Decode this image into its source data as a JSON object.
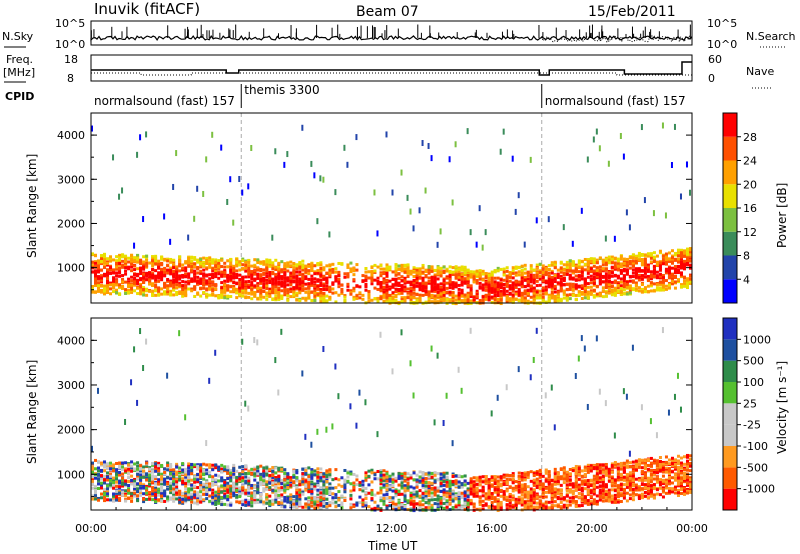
{
  "header": {
    "station": "Inuvik (fitACF)",
    "beam": "Beam 07",
    "date": "15/Feb/2011"
  },
  "top_panels": {
    "nsky_label": "N.Sky",
    "nsearch_label": "N.Search",
    "nsky_ticks": [
      "10^5",
      "10^0"
    ],
    "nsearch_ticks": [
      "10^5",
      "10^0"
    ],
    "freq_label": "Freq.",
    "freq_unit": "[MHz]",
    "freq_ticks": [
      "18",
      "8"
    ],
    "nave_label": "Nave",
    "nave_ticks": [
      "60",
      "0"
    ],
    "cpid_label": "CPID",
    "cpid_segments": [
      {
        "label": "normalsound (fast) 157",
        "start_hour": 0,
        "end_hour": 6
      },
      {
        "label": "themis 3300",
        "start_hour": 6,
        "end_hour": 18
      },
      {
        "label": "normalsound (fast) 157",
        "start_hour": 18,
        "end_hour": 24
      }
    ]
  },
  "colors": {
    "power_scale": [
      "#0000ff",
      "#2244aa",
      "#3a8c5a",
      "#7cc040",
      "#e8e000",
      "#ffa000",
      "#ff5000",
      "#ff0000"
    ],
    "velocity_scale": [
      "#ff0000",
      "#ff5a00",
      "#ff9a20",
      "#c8c8c8",
      "#c8c8c8",
      "#55c030",
      "#2e8c4a",
      "#1e50a0",
      "#2030c0"
    ]
  },
  "chart_data": [
    {
      "type": "heatmap",
      "name": "power",
      "ylabel": "Slant Range [km]",
      "ylim": [
        200,
        4500
      ],
      "xlim": [
        0,
        24
      ],
      "yticks": [
        1000,
        2000,
        3000,
        4000
      ],
      "colorbar_label": "Power [dB]",
      "colorbar_ticks": [
        4,
        8,
        12,
        16,
        20,
        24,
        28
      ],
      "colorbar_range": [
        0,
        32
      ]
    },
    {
      "type": "heatmap",
      "name": "velocity",
      "ylabel": "Slant Range [km]",
      "ylim": [
        200,
        4500
      ],
      "xlim": [
        0,
        24
      ],
      "yticks": [
        1000,
        2000,
        3000,
        4000
      ],
      "colorbar_label": "Velocity [m s⁻¹]",
      "colorbar_ticks": [
        -1000,
        -500,
        -100,
        -25,
        25,
        100,
        500,
        1000
      ]
    }
  ],
  "x_axis": {
    "label": "Time UT",
    "ticks": [
      "00:00",
      "04:00",
      "08:00",
      "12:00",
      "16:00",
      "20:00",
      "00:00"
    ]
  }
}
